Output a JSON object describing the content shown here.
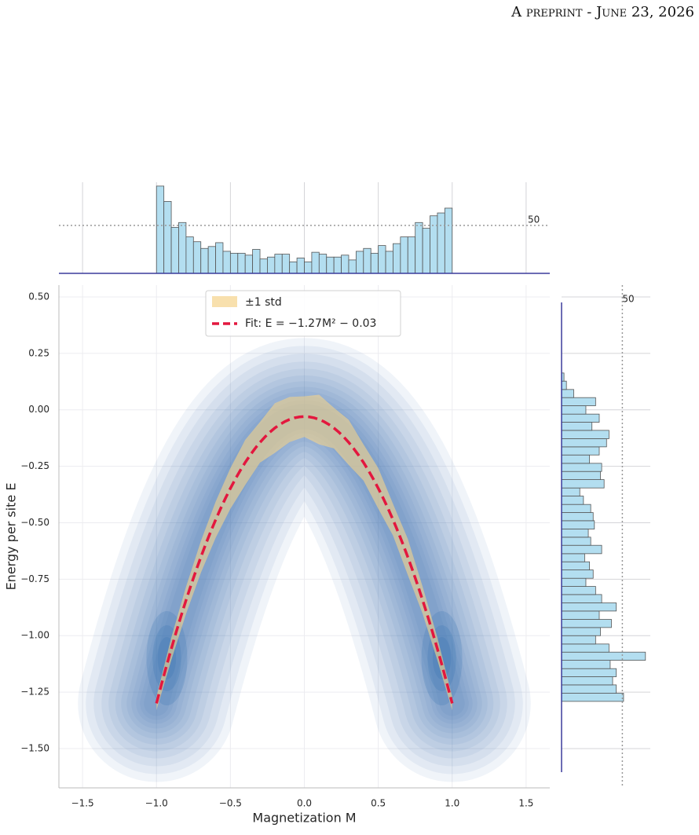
{
  "header": "A preprint - June 23, 2026",
  "chart_data": {
    "type": "joint",
    "x_label": "Magnetization M",
    "y_label": "Energy per site E",
    "xlim": [
      -1.66,
      1.66
    ],
    "ylim": [
      -1.674,
      0.552
    ],
    "xticks": [
      {
        "value": -1.5,
        "label": "−1.5"
      },
      {
        "value": -1,
        "label": "−1.0"
      },
      {
        "value": -0.5,
        "label": "−0.5"
      },
      {
        "value": 0,
        "label": "0.0"
      },
      0.5,
      {
        "value": 1,
        "label": "1.0"
      },
      1.5
    ],
    "yticks": [
      {
        "value": 0.5,
        "label": "0.50"
      },
      0.25,
      {
        "value": 0,
        "label": "0.00"
      },
      {
        "value": -0.25,
        "label": "−0.25"
      },
      {
        "value": -0.5,
        "label": "−0.50"
      },
      {
        "value": -0.75,
        "label": "−0.75"
      },
      {
        "value": -1,
        "label": "−1.00"
      },
      {
        "value": -1.25,
        "label": "−1.25"
      },
      {
        "value": -1.5,
        "label": "−1.50"
      }
    ],
    "grid": true,
    "kde_color": "#2f6fb0",
    "fit": {
      "name": "Fit: E = −1.27M² − 0.03",
      "color": "#e3173e",
      "a": -1.27,
      "b": -0.03
    },
    "band": {
      "name": "±1 std",
      "color": "#f5d38a",
      "x": [
        -1,
        -0.9,
        -0.8,
        -0.7,
        -0.6,
        -0.5,
        -0.4,
        -0.3,
        -0.2,
        -0.1,
        0,
        0.1,
        0.2,
        0.3,
        0.4,
        0.5,
        0.6,
        0.7,
        0.8,
        0.9,
        1
      ],
      "upper": [
        -1.27,
        -1.009,
        -0.783,
        -0.582,
        -0.407,
        -0.258,
        -0.133,
        -0.054,
        0.029,
        0.057,
        0.06,
        0.067,
        0.009,
        -0.044,
        -0.153,
        -0.258,
        -0.417,
        -0.572,
        -0.783,
        -1.009,
        -1.27
      ],
      "lower": [
        -1.33,
        -1.109,
        -0.903,
        -0.722,
        -0.567,
        -0.438,
        -0.333,
        -0.234,
        -0.191,
        -0.143,
        -0.12,
        -0.153,
        -0.171,
        -0.244,
        -0.313,
        -0.438,
        -0.557,
        -0.732,
        -0.903,
        -1.109,
        -1.33
      ]
    },
    "top_hist": {
      "color": "#b3def0",
      "bins": [
        -1,
        -0.95,
        -0.9,
        -0.85,
        -0.8,
        -0.75,
        -0.7,
        -0.65,
        -0.6,
        -0.55,
        -0.5,
        -0.45,
        -0.4,
        -0.35,
        -0.3,
        -0.25,
        -0.2,
        -0.15,
        -0.1,
        -0.05,
        0,
        0.05,
        0.1,
        0.15,
        0.2,
        0.25,
        0.3,
        0.35,
        0.4,
        0.45,
        0.5,
        0.55,
        0.6,
        0.65,
        0.7,
        0.75,
        0.8,
        0.85,
        0.9,
        0.95,
        1
      ],
      "counts": [
        91,
        75,
        48,
        53,
        38,
        33,
        26,
        28,
        32,
        23,
        21,
        21,
        19,
        25,
        15,
        17,
        20,
        20,
        12,
        16,
        12,
        22,
        20,
        17,
        17,
        19,
        14,
        23,
        26,
        21,
        29,
        23,
        31,
        38,
        38,
        53,
        47,
        60,
        63,
        68
      ],
      "ylim": [
        0,
        95
      ],
      "yticks": [
        50
      ]
    },
    "right_hist": {
      "color": "#b3def0",
      "bins": [
        -1.291,
        -1.255,
        -1.218,
        -1.182,
        -1.146,
        -1.109,
        -1.073,
        -1.037,
        -1.0,
        -0.964,
        -0.928,
        -0.891,
        -0.855,
        -0.818,
        -0.782,
        -0.746,
        -0.709,
        -0.673,
        -0.637,
        -0.6,
        -0.564,
        -0.528,
        -0.491,
        -0.455,
        -0.419,
        -0.382,
        -0.346,
        -0.309,
        -0.273,
        -0.237,
        -0.2,
        -0.164,
        -0.128,
        -0.091,
        -0.055,
        -0.019,
        0.018,
        0.054,
        0.09,
        0.127,
        0.163
      ],
      "counts": [
        51,
        45,
        42,
        45,
        40,
        69,
        39,
        28,
        32,
        41,
        31,
        45,
        33,
        28,
        20,
        26,
        23,
        19,
        33,
        24,
        22,
        27,
        26,
        24,
        18,
        15,
        35,
        32,
        33,
        23,
        31,
        37,
        39,
        25,
        31,
        20,
        28,
        10,
        4,
        2
      ],
      "xlim": [
        0,
        73
      ],
      "xticks": [
        50
      ]
    }
  }
}
